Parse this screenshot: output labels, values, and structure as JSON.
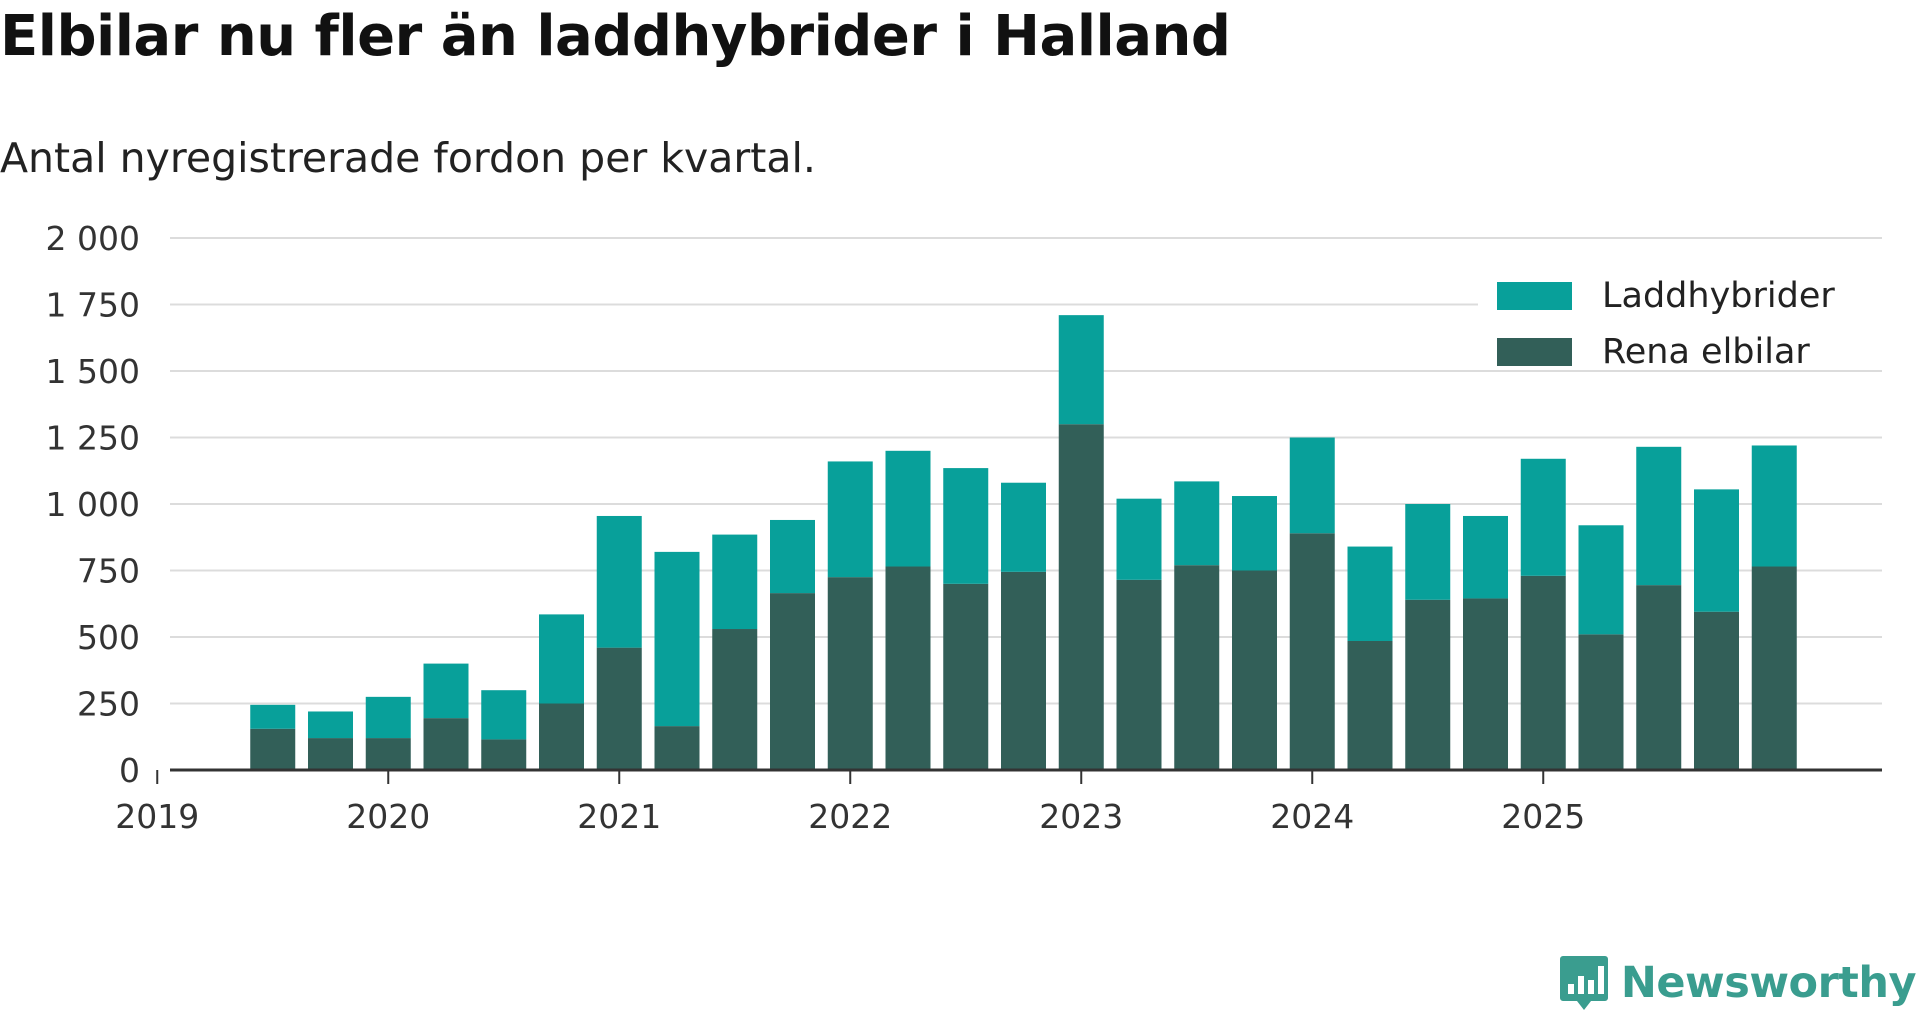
{
  "title": "Elbilar nu fler än laddhybrider i Halland",
  "subtitle": "Antal nyregistrerade fordon per kvartal.",
  "brand": {
    "name": "Newsworthy",
    "icon": "newsworthy-logo-icon"
  },
  "colors": {
    "laddhybrider": "#08a09a",
    "rena_elbilar": "#325f58",
    "grid": "#dcdcdc",
    "axis": "#333333"
  },
  "chart_data": {
    "type": "bar",
    "stacked": true,
    "categories": [
      "2019 Q2",
      "2019 Q3",
      "2019 Q4",
      "2020 Q1",
      "2020 Q2",
      "2020 Q3",
      "2020 Q4",
      "2021 Q1",
      "2021 Q2",
      "2021 Q3",
      "2021 Q4",
      "2022 Q1",
      "2022 Q2",
      "2022 Q3",
      "2022 Q4",
      "2023 Q1",
      "2023 Q2",
      "2023 Q3",
      "2023 Q4",
      "2024 Q1",
      "2024 Q2",
      "2024 Q3",
      "2024 Q4",
      "2025 Q1",
      "2025 Q2",
      "2025 Q3",
      "2025 Q4"
    ],
    "series": [
      {
        "name": "Rena elbilar",
        "values": [
          155,
          120,
          120,
          195,
          115,
          250,
          460,
          165,
          530,
          665,
          725,
          765,
          700,
          745,
          1300,
          715,
          770,
          750,
          890,
          485,
          640,
          645,
          730,
          510,
          695,
          595,
          765
        ]
      },
      {
        "name": "Laddhybrider",
        "values": [
          90,
          100,
          155,
          205,
          185,
          335,
          495,
          655,
          355,
          275,
          435,
          435,
          435,
          335,
          410,
          305,
          315,
          280,
          360,
          355,
          360,
          310,
          440,
          410,
          520,
          460,
          455
        ]
      }
    ],
    "x_tick_labels": [
      "2019",
      "2020",
      "2021",
      "2022",
      "2023",
      "2024",
      "2025"
    ],
    "y_tick_labels": [
      "0",
      "250",
      "500",
      "750",
      "1 000",
      "1 250",
      "1 500",
      "1 750",
      "2 000"
    ],
    "y_ticks": [
      0,
      250,
      500,
      750,
      1000,
      1250,
      1500,
      1750,
      2000
    ],
    "ylim": [
      0,
      2000
    ],
    "legend": [
      "Laddhybrider",
      "Rena elbilar"
    ],
    "legend_position": "top-right",
    "xlabel": "",
    "ylabel": "",
    "grid": true
  }
}
